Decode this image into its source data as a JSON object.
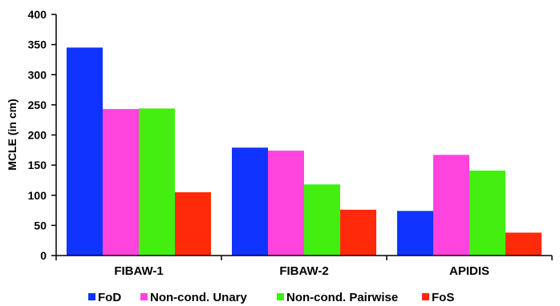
{
  "chart_data": {
    "type": "bar",
    "title": "",
    "xlabel": "",
    "ylabel": "MCLE (in cm)",
    "ylim": [
      0,
      400
    ],
    "yticks": [
      0,
      50,
      100,
      150,
      200,
      250,
      300,
      350,
      400
    ],
    "grid": false,
    "legend_position": "bottom",
    "categories": [
      "FIBAW-1",
      "FIBAW-2",
      "APIDIS"
    ],
    "series": [
      {
        "name": "FoD",
        "color": "#1133ff",
        "values": [
          345,
          179,
          74
        ]
      },
      {
        "name": "Non-cond. Unary",
        "color": "#ff44dd",
        "values": [
          243,
          174,
          167
        ]
      },
      {
        "name": "Non-cond. Pairwise",
        "color": "#44ee11",
        "values": [
          244,
          118,
          141
        ]
      },
      {
        "name": "FoS",
        "color": "#ff2a0a",
        "values": [
          105,
          76,
          38
        ]
      }
    ]
  }
}
